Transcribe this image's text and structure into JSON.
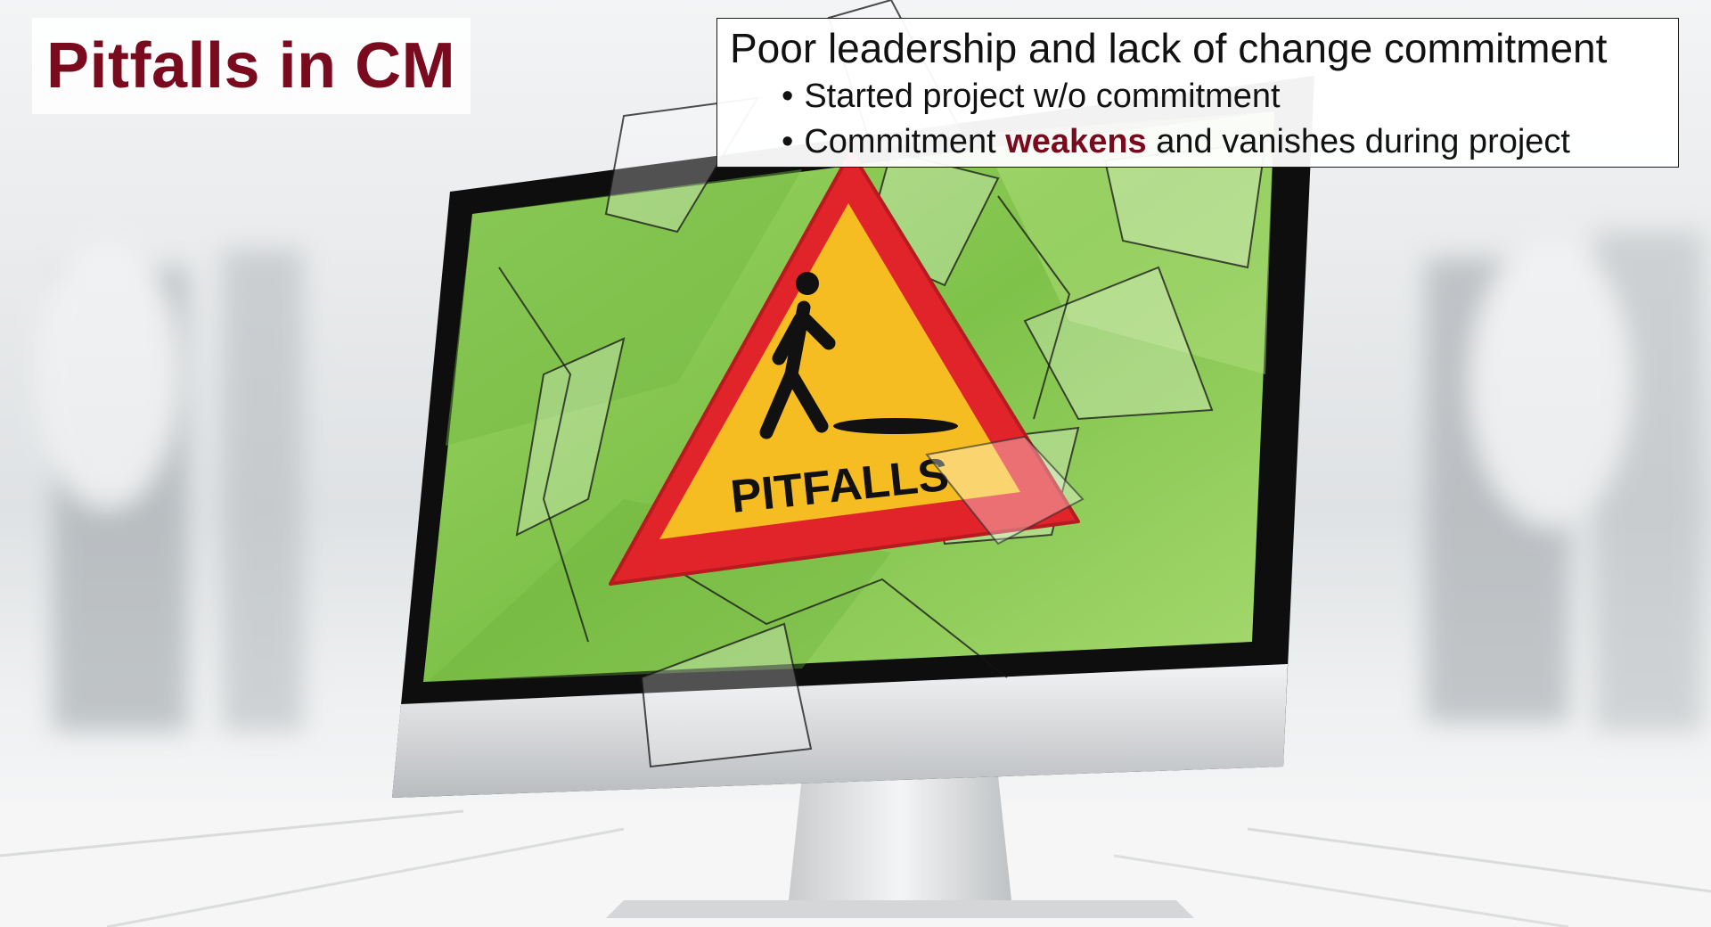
{
  "title": "Pitfalls in CM",
  "info": {
    "heading": "Poor leadership and lack of change commitment",
    "bullets": [
      {
        "text": "Started project w/o commitment"
      },
      {
        "before": "Commitment ",
        "highlight": "weakens",
        "after": " and vanishes during project"
      }
    ]
  },
  "sign_label": "PITFALLS",
  "colors": {
    "title_accent": "#7a0b1e",
    "screen_green": "#8fcd5a",
    "sign_red": "#e0242a",
    "sign_yellow": "#f6bd22"
  },
  "icons": [
    "walking-person-icon",
    "warning-triangle-icon"
  ]
}
